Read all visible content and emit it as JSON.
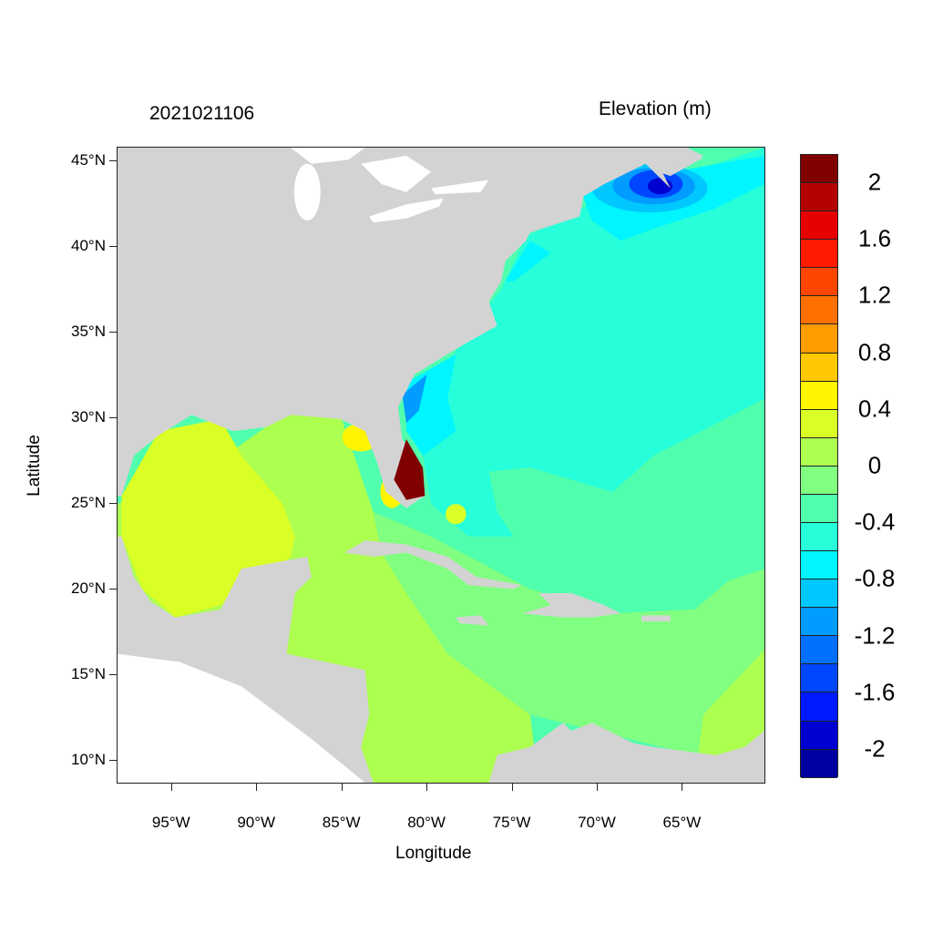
{
  "chart_data": {
    "type": "heatmap",
    "title_left": "2021021106",
    "title_right": "Elevation (m)",
    "xlabel": "Longitude",
    "ylabel": "Latitude",
    "xlim": [
      -98.2,
      -60.1
    ],
    "ylim": [
      8.6,
      45.8
    ],
    "x_ticks": [
      {
        "value": -95,
        "label": "95°W"
      },
      {
        "value": -90,
        "label": "90°W"
      },
      {
        "value": -85,
        "label": "85°W"
      },
      {
        "value": -80,
        "label": "80°W"
      },
      {
        "value": -75,
        "label": "75°W"
      },
      {
        "value": -70,
        "label": "70°W"
      },
      {
        "value": -65,
        "label": "65°W"
      }
    ],
    "y_ticks": [
      {
        "value": 45,
        "label": "45°N"
      },
      {
        "value": 40,
        "label": "40°N"
      },
      {
        "value": 35,
        "label": "35°N"
      },
      {
        "value": 30,
        "label": "30°N"
      },
      {
        "value": 25,
        "label": "25°N"
      },
      {
        "value": 20,
        "label": "20°N"
      },
      {
        "value": 15,
        "label": "15°N"
      },
      {
        "value": 10,
        "label": "10°N"
      }
    ],
    "colorbar": {
      "min": -2.2,
      "max": 2.2,
      "step": 0.2,
      "labels": [
        "2",
        "1.6",
        "1.2",
        "0.8",
        "0.4",
        "0",
        "-0.4",
        "-0.8",
        "-1.2",
        "-1.6",
        "-2"
      ],
      "label_values": [
        2,
        1.6,
        1.2,
        0.8,
        0.4,
        0,
        -0.4,
        -0.8,
        -1.2,
        -1.6,
        -2
      ],
      "colors_top_to_bottom": [
        "#800000",
        "#b40000",
        "#e60000",
        "#ff1a00",
        "#ff4600",
        "#ff7000",
        "#ff9c00",
        "#ffc800",
        "#fff500",
        "#d9ff26",
        "#adff50",
        "#80ff80",
        "#50ffad",
        "#26ffd9",
        "#00f5ff",
        "#00c8ff",
        "#009cff",
        "#0070ff",
        "#0046ff",
        "#001aff",
        "#0000d0",
        "#0000a0"
      ]
    },
    "land_color": "#d3d3d3",
    "grid": false
  }
}
